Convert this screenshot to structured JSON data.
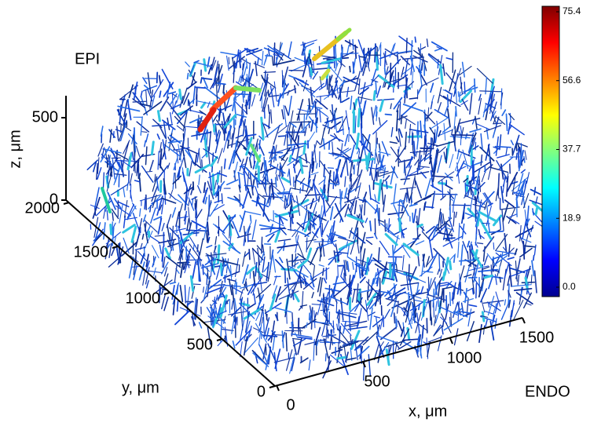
{
  "labels": {
    "epi": "EPI",
    "endo": "ENDO"
  },
  "axes": {
    "z": {
      "label": "z, μm",
      "ticks": [
        "0",
        "500"
      ]
    },
    "y": {
      "label": "y, μm",
      "ticks": [
        "0",
        "500",
        "1000",
        "1500",
        "2000"
      ]
    },
    "x": {
      "label": "x, μm",
      "ticks": [
        "0",
        "500",
        "1000",
        "1500"
      ]
    }
  },
  "colorbar": {
    "ticks": [
      "0.0",
      "18.9",
      "37.7",
      "56.6",
      "75.4"
    ]
  }
}
